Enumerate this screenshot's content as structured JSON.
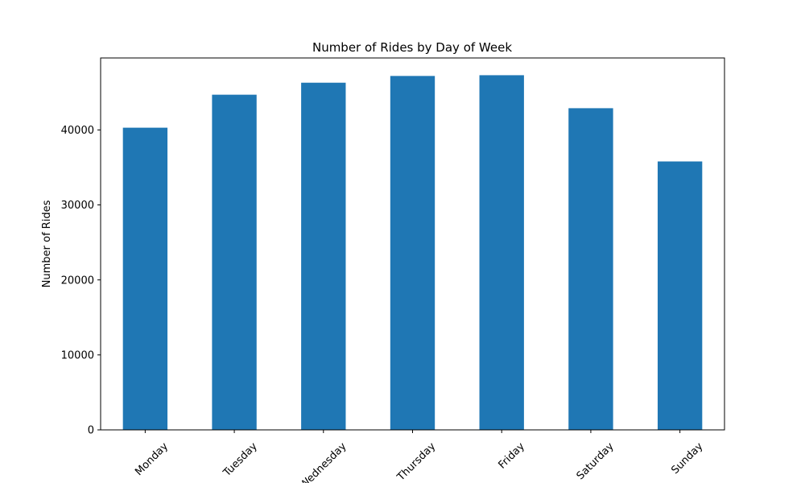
{
  "chart_data": {
    "type": "bar",
    "title": "Number of Rides by Day of Week",
    "xlabel": "",
    "ylabel": "Number of Rides",
    "categories": [
      "Monday",
      "Tuesday",
      "Wednesday",
      "Thursday",
      "Friday",
      "Saturday",
      "Sunday"
    ],
    "values": [
      40300,
      44700,
      46300,
      47200,
      47300,
      42900,
      35800
    ],
    "ylim": [
      0,
      49600
    ],
    "yticks": [
      0,
      10000,
      20000,
      30000,
      40000
    ],
    "ytick_labels": [
      "0",
      "10000",
      "20000",
      "30000",
      "40000"
    ],
    "grid": false,
    "legend": "none",
    "bar_color": "#1f77b4"
  }
}
